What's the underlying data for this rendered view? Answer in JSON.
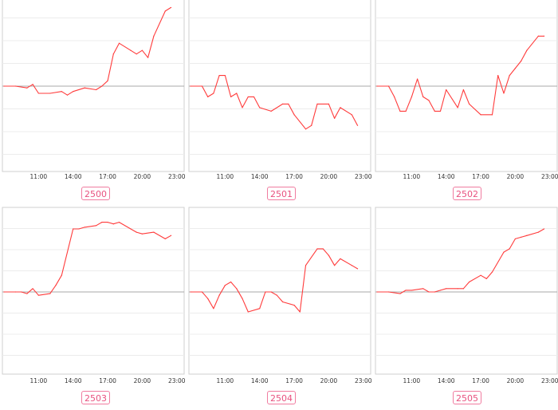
{
  "colors": {
    "line": "#ff3b3b",
    "baseline": "#a9a9a9",
    "grid": "#ececec",
    "frame": "#cfcfcf",
    "badge": "#e8517f"
  },
  "chart_data": [
    {
      "type": "line",
      "code": "2500",
      "x_ticks": [
        "11:00",
        "14:00",
        "17:00",
        "20:00",
        "23:00"
      ],
      "x": [
        "08:00",
        "09:00",
        "10:00",
        "10:30",
        "11:00",
        "12:00",
        "13:00",
        "13:30",
        "14:00",
        "15:00",
        "16:00",
        "16:30",
        "17:00",
        "17:30",
        "18:00",
        "19:00",
        "19:30",
        "20:00",
        "20:30",
        "21:00",
        "22:00",
        "22:30"
      ],
      "values": [
        0,
        0,
        -0.5,
        0.5,
        -2,
        -2,
        -1.5,
        -2.5,
        -1.5,
        -0.5,
        -1,
        0,
        1.5,
        9,
        12,
        10,
        9,
        10,
        8,
        14,
        21,
        22
      ],
      "ylim": [
        -25,
        25
      ],
      "baseline": 0,
      "grid": true
    },
    {
      "type": "line",
      "code": "2501",
      "x_ticks": [
        "11:00",
        "14:00",
        "17:00",
        "20:00",
        "23:00"
      ],
      "x": [
        "08:00",
        "09:00",
        "09:30",
        "10:00",
        "10:30",
        "11:00",
        "11:30",
        "12:00",
        "12:30",
        "13:00",
        "13:30",
        "14:00",
        "15:00",
        "16:00",
        "16:30",
        "17:00",
        "18:00",
        "18:30",
        "19:00",
        "20:00",
        "20:30",
        "21:00",
        "22:00",
        "22:30"
      ],
      "values": [
        0,
        0,
        -3,
        -2,
        3,
        3,
        -3,
        -2,
        -6,
        -3,
        -3,
        -6,
        -7,
        -5,
        -5,
        -8,
        -12,
        -11,
        -5,
        -5,
        -9,
        -6,
        -8,
        -11
      ],
      "ylim": [
        -25,
        25
      ],
      "baseline": 0,
      "grid": true
    },
    {
      "type": "line",
      "code": "2502",
      "x_ticks": [
        "11:00",
        "14:00",
        "17:00",
        "20:00",
        "23:00"
      ],
      "x": [
        "08:00",
        "09:00",
        "09:30",
        "10:00",
        "10:30",
        "11:00",
        "11:30",
        "12:00",
        "12:30",
        "13:00",
        "13:30",
        "14:00",
        "15:00",
        "15:30",
        "16:00",
        "17:00",
        "18:00",
        "18:30",
        "19:00",
        "19:30",
        "20:00",
        "20:30",
        "21:00",
        "22:00",
        "22:30"
      ],
      "values": [
        0,
        0,
        -3,
        -7,
        -7,
        -3,
        2,
        -3,
        -4,
        -7,
        -7,
        -1,
        -6,
        -1,
        -5,
        -8,
        -8,
        3,
        -2,
        3,
        5,
        7,
        10,
        14,
        14
      ],
      "ylim": [
        -25,
        25
      ],
      "baseline": 0,
      "grid": true
    },
    {
      "type": "line",
      "code": "2503",
      "x_ticks": [
        "11:00",
        "14:00",
        "17:00",
        "20:00",
        "23:00"
      ],
      "x": [
        "08:00",
        "09:00",
        "09:30",
        "10:00",
        "10:30",
        "11:00",
        "12:00",
        "12:30",
        "13:00",
        "14:00",
        "14:30",
        "15:00",
        "16:00",
        "16:30",
        "17:00",
        "17:30",
        "18:00",
        "19:00",
        "19:30",
        "20:00",
        "21:00",
        "22:00",
        "22:30"
      ],
      "values": [
        0,
        0,
        0,
        -0.5,
        1,
        -1,
        -0.5,
        2,
        5,
        19,
        19,
        19.5,
        20,
        21,
        21,
        20.5,
        21,
        19,
        18,
        17.5,
        18,
        16,
        17
      ],
      "ylim": [
        -25,
        25
      ],
      "baseline": 0,
      "grid": true
    },
    {
      "type": "line",
      "code": "2504",
      "x_ticks": [
        "11:00",
        "14:00",
        "17:00",
        "20:00",
        "23:00"
      ],
      "x": [
        "08:00",
        "09:00",
        "09:30",
        "10:00",
        "10:30",
        "11:00",
        "11:30",
        "12:00",
        "12:30",
        "13:00",
        "14:00",
        "14:30",
        "15:00",
        "15:30",
        "16:00",
        "17:00",
        "17:30",
        "18:00",
        "19:00",
        "19:30",
        "20:00",
        "20:30",
        "21:00",
        "22:00",
        "22:30"
      ],
      "values": [
        0,
        0,
        -2,
        -5,
        -1,
        2,
        3,
        1,
        -2,
        -6,
        -5,
        0,
        0,
        -1,
        -3,
        -4,
        -6,
        8,
        13,
        13,
        11,
        8,
        10,
        8,
        7
      ],
      "ylim": [
        -25,
        25
      ],
      "baseline": 0,
      "grid": true
    },
    {
      "type": "line",
      "code": "2505",
      "x_ticks": [
        "11:00",
        "14:00",
        "17:00",
        "20:00",
        "23:00"
      ],
      "x": [
        "08:00",
        "09:00",
        "10:00",
        "10:30",
        "11:00",
        "12:00",
        "12:30",
        "13:00",
        "13:30",
        "14:00",
        "15:00",
        "15:30",
        "16:00",
        "17:00",
        "17:30",
        "18:00",
        "19:00",
        "19:30",
        "20:00",
        "20:30",
        "21:00",
        "22:00",
        "22:30"
      ],
      "values": [
        0,
        0,
        -0.5,
        0.5,
        0.5,
        1,
        0,
        0,
        0.5,
        1,
        1,
        1,
        3,
        5,
        4,
        6,
        12,
        13,
        16,
        16.5,
        17,
        18,
        19
      ],
      "ylim": [
        -25,
        25
      ],
      "baseline": 0,
      "grid": true
    }
  ]
}
